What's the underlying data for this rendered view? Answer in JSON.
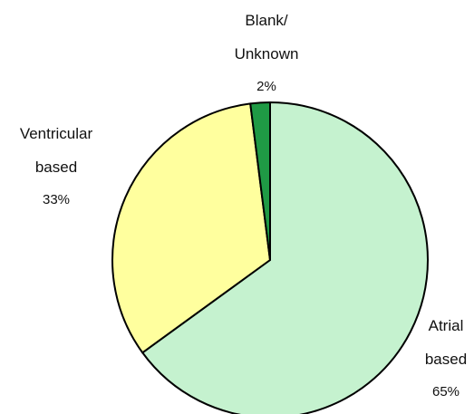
{
  "chart_data": {
    "type": "pie",
    "title": "",
    "slices": [
      {
        "label_lines": [
          "Atrial",
          "based"
        ],
        "value": 65,
        "value_label": "65%",
        "color": "#c5f2cf"
      },
      {
        "label_lines": [
          "Ventricular",
          "based"
        ],
        "value": 33,
        "value_label": "33%",
        "color": "#ffff9e"
      },
      {
        "label_lines": [
          "Blank/",
          "Unknown"
        ],
        "value": 2,
        "value_label": "2%",
        "color": "#1f9a45"
      }
    ],
    "legend": "none"
  }
}
